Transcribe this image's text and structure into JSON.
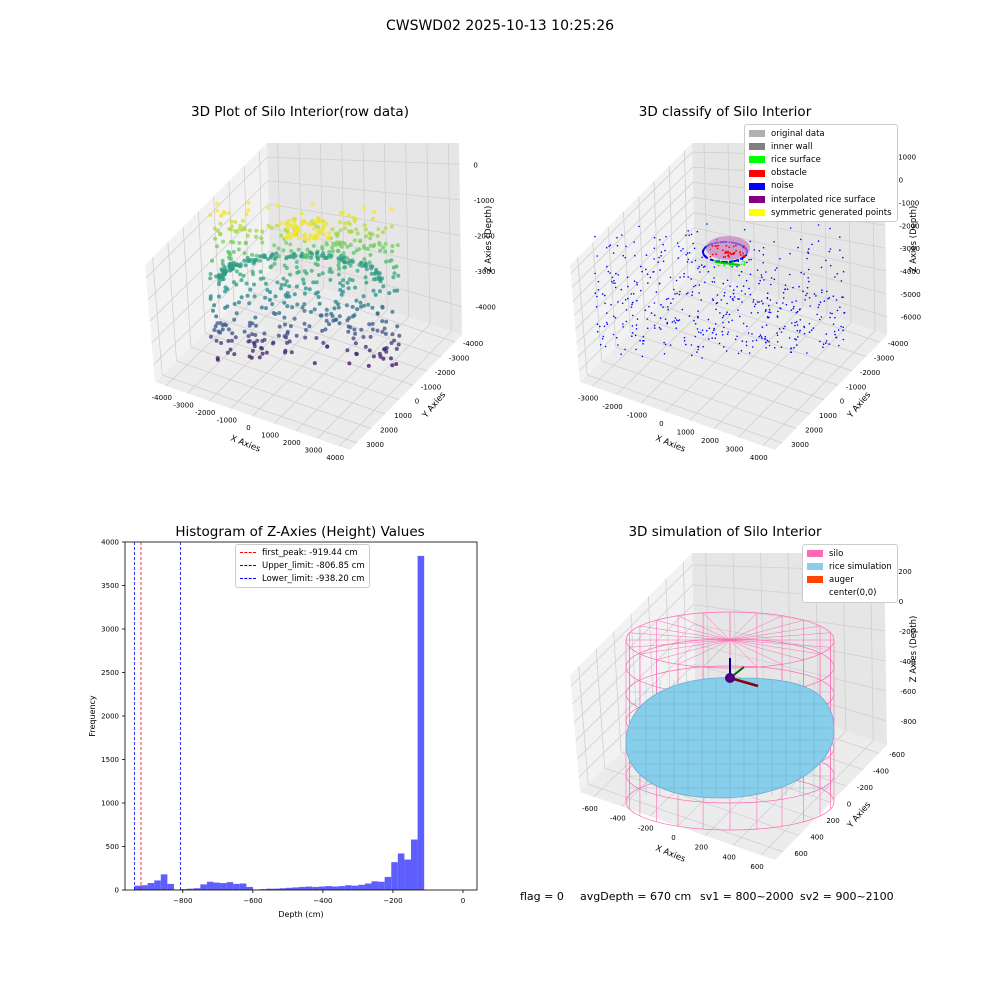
{
  "suptitle": "CWSWD02 2025-10-13 10:25:26",
  "panels": {
    "raw": {
      "title": "3D Plot of Silo Interior(row data)",
      "xlabel": "X Axies",
      "ylabel": "Y Axies",
      "zlabel": "Z Axies (Depth)",
      "xticks": [
        "-4000",
        "-3000",
        "-2000",
        "-1000",
        "0",
        "1000",
        "2000",
        "3000",
        "4000"
      ],
      "yticks": [
        "3000",
        "2000",
        "1000",
        "0",
        "-1000",
        "-2000",
        "-3000",
        "-4000"
      ],
      "zticks": [
        "0",
        "-1000",
        "-2000",
        "-3000",
        "-4000"
      ]
    },
    "classify": {
      "title": "3D classify of Silo Interior",
      "xlabel": "X Axies",
      "ylabel": "Y Axies",
      "zlabel": "Z Axies (Depth)",
      "xticks": [
        "-3000",
        "-2000",
        "-1000",
        "0",
        "1000",
        "2000",
        "3000",
        "4000"
      ],
      "yticks": [
        "3000",
        "2000",
        "1000",
        "0",
        "-1000",
        "-2000",
        "-3000",
        "-4000"
      ],
      "zticks": [
        "1000",
        "0",
        "-1000",
        "-2000",
        "-3000",
        "-4000",
        "-5000",
        "-6000"
      ],
      "legend": [
        {
          "label": "original data",
          "color": "#b0b0b0"
        },
        {
          "label": "inner wall",
          "color": "#808080"
        },
        {
          "label": "rice surface",
          "color": "#00ff00"
        },
        {
          "label": "obstacle",
          "color": "#ff0000"
        },
        {
          "label": "noise",
          "color": "#0000ff"
        },
        {
          "label": "interpolated rice surface",
          "color": "#800080"
        },
        {
          "label": "symmetric generated points",
          "color": "#ffff00"
        }
      ]
    },
    "simulation": {
      "title": "3D simulation of Silo Interior",
      "xlabel": "X Axies",
      "ylabel": "Y Axies",
      "zlabel": "Z Axies (Depth)",
      "xticks": [
        "-600",
        "-400",
        "-200",
        "0",
        "200",
        "400",
        "600"
      ],
      "yticks": [
        "600",
        "400",
        "200",
        "0",
        "-200",
        "-400",
        "-600"
      ],
      "zticks": [
        "200",
        "0",
        "-200",
        "-400",
        "-600",
        "-800"
      ],
      "legend": [
        {
          "label": "silo",
          "color": "#ff69b4"
        },
        {
          "label": "rice simulation",
          "color": "#87ceeb"
        },
        {
          "label": "auger",
          "color": "#ff4500"
        },
        {
          "label": "center(0,0)",
          "color": "#ffffff"
        }
      ]
    }
  },
  "chart_data": [
    {
      "type": "histogram",
      "title": "Histogram of Z-Axies (Height) Values",
      "xlabel": "Depth (cm)",
      "ylabel": "Frequency",
      "xlim": [
        -965,
        40
      ],
      "ylim": [
        0,
        4000
      ],
      "xticks": [
        -800,
        -600,
        -400,
        -200,
        0
      ],
      "yticks": [
        0,
        500,
        1000,
        1500,
        2000,
        2500,
        3000,
        3500,
        4000
      ],
      "bin_start": -938,
      "bin_width": 18.8,
      "counts": [
        50,
        55,
        80,
        110,
        180,
        70,
        5,
        10,
        15,
        20,
        65,
        95,
        85,
        80,
        90,
        70,
        75,
        35,
        5,
        10,
        15,
        15,
        20,
        25,
        30,
        35,
        40,
        35,
        40,
        45,
        40,
        45,
        55,
        50,
        60,
        75,
        100,
        95,
        150,
        320,
        420,
        350,
        580,
        3840
      ],
      "vlines": [
        {
          "label": "first_peak: -919.44 cm",
          "x": -919.44,
          "color": "#ff0000"
        },
        {
          "label": "Upper_limit: -806.85 cm",
          "x": -806.85,
          "color": "#0000ff"
        },
        {
          "label": "Lower_limit: -938.20 cm",
          "x": -938.2,
          "color": "#0000ff"
        }
      ],
      "bar_color": "#5555ff"
    }
  ],
  "stats": {
    "flag": "flag = 0",
    "avgDepth": "avgDepth = 670 cm",
    "sv1": "sv1 = 800~2000",
    "sv2": "sv2 = 900~2100"
  }
}
